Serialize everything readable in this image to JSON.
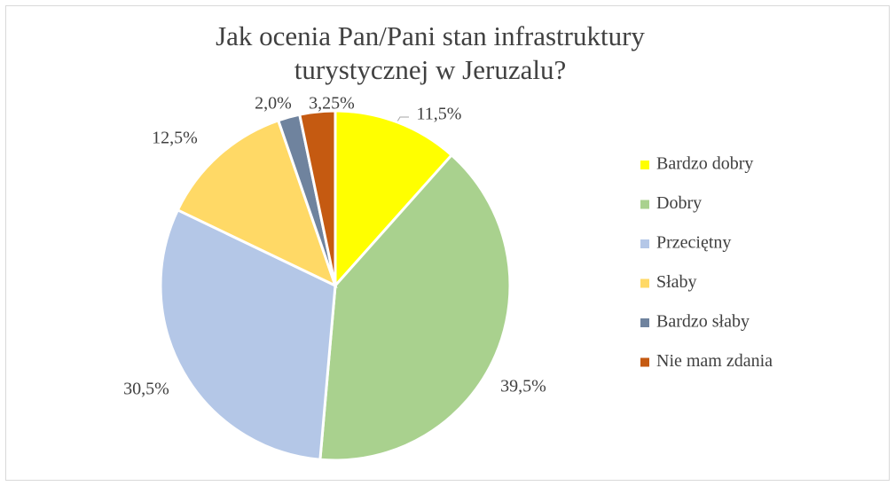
{
  "chart_data": {
    "type": "pie",
    "title": "Jak ocenia Pan/Pani stan infrastruktury turystycznej w Jeruzalu?",
    "categories": [
      "Bardzo dobry",
      "Dobry",
      "Przeciętny",
      "Słaby",
      "Bardzo słaby",
      "Nie mam zdania"
    ],
    "values": [
      11.5,
      39.5,
      30.5,
      12.5,
      2.0,
      3.25
    ],
    "value_labels": [
      "11,5%",
      "39,5%",
      "30,5%",
      "12,5%",
      "2,0%",
      "3,25%"
    ],
    "colors": [
      "#FFFF00",
      "#A9D18E",
      "#B4C7E7",
      "#FFD966",
      "#6F839E",
      "#C55A11"
    ],
    "legend": "right"
  }
}
